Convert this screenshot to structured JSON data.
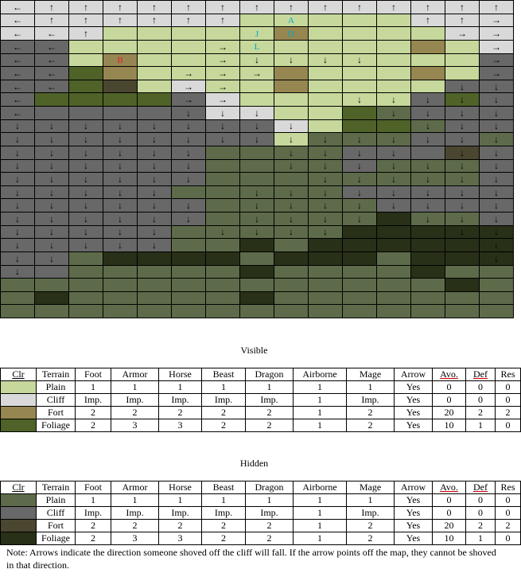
{
  "colors": {
    "P": "#c6d89b",
    "C": "#d9d9d9",
    "F": "#968651",
    "G": "#4f6228",
    "h": "#5e6b4a",
    "c": "#686868",
    "f": "#4a4630",
    "g": "#283018"
  },
  "map": {
    "rows": [
      "CCCCCCCCCCCCCCC",
      "CCCCCCCPPPPPCCC",
      "CCCPPPPPFPPPPCC",
      "ccPPPPPPPPPPFPC",
      "ccPFPPPPPPPPPPc",
      "ccGFPPPPFPPPFPc",
      "ccGfPCPPFPPPPcc",
      "cGGGGcCPPPPPcGc",
      "ccccccCCPPGhccc",
      "ccccccccCPGGhcc",
      "ccccccccPhhhcc",
      "cccccchhhhcccfc",
      "cccccchhhhchhhc",
      "cccccchhhhhhhhc",
      "ccccchhhhhccccc",
      "cccccchhhhhcccc",
      "cccccchhhhhghhc",
      "ccccchhhhhggggg",
      "ccccchhghgggggg",
      "cchgggghggghggg",
      "cchhhhhghhhhghh",
      "hhhhhhhhhhhhhgh",
      "hghhhhhghhhhhhh",
      "hhhhhhhhhhhhhhh"
    ],
    "arrows": [
      [
        "←",
        "↑",
        "↑",
        "↑",
        "↑",
        "↑",
        "↑",
        "↑",
        "↑",
        "↑",
        "↑",
        "↑",
        "↑",
        "↑",
        "↑"
      ],
      [
        "←",
        "↑",
        "↑",
        "↑",
        "↑",
        "↑",
        "↑",
        "",
        "",
        "",
        "",
        "",
        "↑",
        "↑",
        "→"
      ],
      [
        "←",
        "←",
        "↑",
        "",
        "",
        "",
        "",
        "",
        "",
        "",
        "",
        "",
        "",
        "→",
        "→"
      ],
      [
        "←",
        "←",
        "",
        "",
        "",
        "",
        "→",
        "",
        "",
        "",
        "",
        "",
        "",
        "",
        "→"
      ],
      [
        "←",
        "←",
        "",
        "",
        "",
        "",
        "→",
        "↓",
        "↓",
        "↓",
        "↓",
        "",
        "",
        "",
        "→"
      ],
      [
        "←",
        "←",
        "",
        "",
        "",
        "→",
        "→",
        "→",
        "",
        "",
        "",
        "",
        "",
        "",
        "→"
      ],
      [
        "←",
        "←",
        "",
        "",
        "",
        "→",
        "→",
        "",
        "",
        "",
        "",
        "",
        "",
        "↓",
        "↓"
      ],
      [
        "←",
        "",
        "",
        "",
        "",
        "→",
        "→",
        "",
        "",
        "",
        "↓",
        "↓",
        "↓",
        "↓",
        "↓"
      ],
      [
        "←",
        "",
        "",
        "",
        "",
        "↓",
        "↓",
        "↓",
        "",
        "",
        "",
        "↓",
        "↓",
        "↓",
        "↓"
      ],
      [
        "↓",
        "↓",
        "↓",
        "↓",
        "↓",
        "↓",
        "↓",
        "↓",
        "↓",
        "",
        "",
        "",
        "↓",
        "↓",
        "↓"
      ],
      [
        "↓",
        "↓",
        "↓",
        "↓",
        "↓",
        "↓",
        "↓",
        "↓",
        "↓",
        "↓",
        "↓",
        "↓",
        "↓",
        "↓",
        "↓"
      ],
      [
        "↓",
        "↓",
        "↓",
        "↓",
        "↓",
        "↓",
        "",
        "",
        "↓",
        "↓",
        "↓",
        "↓",
        "",
        "↓",
        "↓"
      ],
      [
        "↓",
        "↓",
        "↓",
        "↓",
        "↓",
        "↓",
        "",
        "",
        "↓",
        "↓",
        "↓",
        "↓",
        "↓",
        "↓",
        "↓"
      ],
      [
        "↓",
        "↓",
        "↓",
        "↓",
        "↓",
        "↓",
        "",
        "",
        "",
        "↓",
        "↓",
        "↓",
        "↓",
        "↓",
        "↓"
      ],
      [
        "↓",
        "↓",
        "↓",
        "↓",
        "↓",
        "",
        "",
        "↓",
        "↓",
        "↓",
        "↓",
        "↓",
        "↓",
        "↓",
        "↓"
      ],
      [
        "↓",
        "↓",
        "↓",
        "↓",
        "↓",
        "↓",
        "",
        "↓",
        "↓",
        "↓",
        "↓",
        "↓",
        "↓",
        "↓",
        "↓"
      ],
      [
        "↓",
        "↓",
        "↓",
        "↓",
        "↓",
        "↓",
        "",
        "↓",
        "↓",
        "↓",
        "↓",
        "",
        "↓",
        "↓",
        "↓"
      ],
      [
        "↓",
        "↓",
        "↓",
        "↓",
        "↓",
        "",
        "↓",
        "↓",
        "↓",
        "↓",
        "",
        "",
        "",
        "↓",
        "↓"
      ],
      [
        "↓",
        "↓",
        "↓",
        "↓",
        "↓",
        "",
        "",
        "",
        "",
        "",
        "",
        "",
        "",
        "",
        "↓"
      ],
      [
        "↓",
        "↓",
        "",
        "",
        "",
        "",
        "",
        "",
        "",
        "",
        "",
        "",
        "",
        "",
        "↓"
      ],
      [
        "↓",
        "",
        "",
        "",
        "",
        "",
        "",
        "",
        "",
        "",
        "",
        "",
        "",
        "",
        ""
      ],
      [
        "",
        "",
        "",
        "",
        "",
        "",
        "",
        "",
        "",
        "",
        "",
        "",
        "",
        "",
        ""
      ],
      [
        "",
        "",
        "",
        "",
        "",
        "",
        "",
        "",
        "",
        "",
        "",
        "",
        "",
        "",
        ""
      ],
      [
        "",
        "",
        "",
        "",
        "",
        "",
        "",
        "",
        "",
        "",
        "",
        "",
        "",
        "",
        ""
      ]
    ],
    "labels": [
      {
        "r": 1,
        "c": 8,
        "t": "A",
        "cls": "cyan"
      },
      {
        "r": 2,
        "c": 7,
        "t": "J",
        "cls": "cyan"
      },
      {
        "r": 2,
        "c": 8,
        "t": "D",
        "cls": "cyan"
      },
      {
        "r": 3,
        "c": 7,
        "t": "L",
        "cls": "cyan"
      },
      {
        "r": 4,
        "c": 3,
        "t": "B",
        "cls": "red"
      }
    ]
  },
  "visible": {
    "title": "Visible",
    "headers": [
      "Clr",
      "Terrain",
      "Foot",
      "Armor",
      "Horse",
      "Beast",
      "Dragon",
      "Airborne",
      "Mage",
      "Arrow",
      "Avo.",
      "Def",
      "Res"
    ],
    "rows": [
      {
        "color": "#c6d89b",
        "cells": [
          "Plain",
          "1",
          "1",
          "1",
          "1",
          "1",
          "1",
          "1",
          "Yes",
          "0",
          "0",
          "0"
        ]
      },
      {
        "color": "#d9d9d9",
        "cells": [
          "Cliff",
          "Imp.",
          "Imp.",
          "Imp.",
          "Imp.",
          "Imp.",
          "1",
          "Imp.",
          "Yes",
          "0",
          "0",
          "0"
        ]
      },
      {
        "color": "#968651",
        "cells": [
          "Fort",
          "2",
          "2",
          "2",
          "2",
          "2",
          "1",
          "2",
          "Yes",
          "20",
          "2",
          "2"
        ]
      },
      {
        "color": "#4f6228",
        "cells": [
          "Foliage",
          "2",
          "3",
          "3",
          "2",
          "2",
          "1",
          "2",
          "Yes",
          "10",
          "1",
          "0"
        ]
      }
    ]
  },
  "hidden": {
    "title": "Hidden",
    "headers": [
      "Clr",
      "Terrain",
      "Foot",
      "Armor",
      "Horse",
      "Beast",
      "Dragon",
      "Airborne",
      "Mage",
      "Arrow",
      "Avo.",
      "Def",
      "Res"
    ],
    "rows": [
      {
        "color": "#5e6b4a",
        "cells": [
          "Plain",
          "1",
          "1",
          "1",
          "1",
          "1",
          "1",
          "1",
          "Yes",
          "0",
          "0",
          "0"
        ]
      },
      {
        "color": "#686868",
        "cells": [
          "Cliff",
          "Imp.",
          "Imp.",
          "Imp.",
          "Imp.",
          "Imp.",
          "1",
          "Imp.",
          "Yes",
          "0",
          "0",
          "0"
        ]
      },
      {
        "color": "#4a4630",
        "cells": [
          "Fort",
          "2",
          "2",
          "2",
          "2",
          "2",
          "1",
          "2",
          "Yes",
          "20",
          "2",
          "2"
        ]
      },
      {
        "color": "#283018",
        "cells": [
          "Foliage",
          "2",
          "3",
          "3",
          "2",
          "2",
          "1",
          "2",
          "Yes",
          "10",
          "1",
          "0"
        ]
      }
    ]
  },
  "note": "Note: Arrows indicate the direction someone shoved off the cliff will fall.  If the arrow points off the map, they cannot be shoved in that direction."
}
